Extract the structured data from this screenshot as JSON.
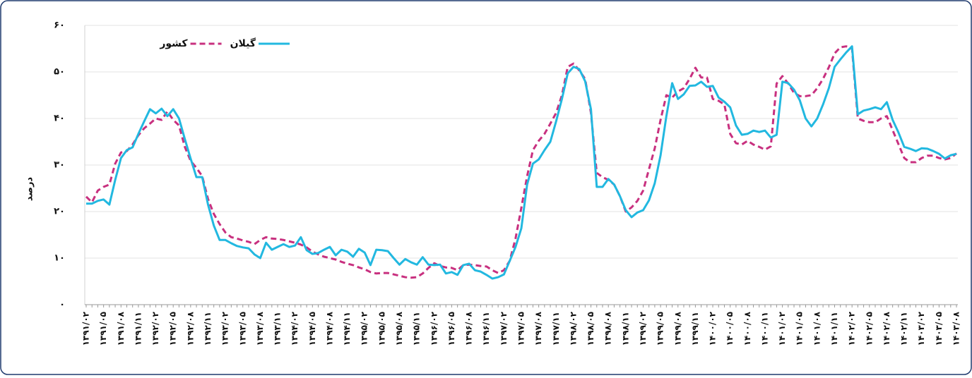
{
  "chart_data": {
    "type": "line",
    "y_label": "درصد",
    "categories": [
      "۱۳۹۱/۰۲",
      null,
      null,
      "۱۳۹۱/۰۵",
      null,
      null,
      "۱۳۹۱/۰۸",
      null,
      null,
      "۱۳۹۱/۱۱",
      null,
      null,
      "۱۳۹۲/۰۲",
      null,
      null,
      "۱۳۹۲/۰۵",
      null,
      null,
      "۱۳۹۲/۰۸",
      null,
      null,
      "۱۳۹۲/۱۱",
      null,
      null,
      "۱۳۹۳/۰۲",
      null,
      null,
      "۱۳۹۳/۰۵",
      null,
      null,
      "۱۳۹۳/۰۸",
      null,
      null,
      "۱۳۹۳/۱۱",
      null,
      null,
      "۱۳۹۴/۰۲",
      null,
      null,
      "۱۳۹۴/۰۵",
      null,
      null,
      "۱۳۹۴/۰۸",
      null,
      null,
      "۱۳۹۴/۱۱",
      null,
      null,
      "۱۳۹۵/۰۲",
      null,
      null,
      "۱۳۹۵/۰۵",
      null,
      null,
      "۱۳۹۵/۰۸",
      null,
      null,
      "۱۳۹۵/۱۱",
      null,
      null,
      "۱۳۹۶/۰۲",
      null,
      null,
      "۱۳۹۶/۰۵",
      null,
      null,
      "۱۳۹۶/۰۸",
      null,
      null,
      "۱۳۹۶/۱۱",
      null,
      null,
      "۱۳۹۷/۰۲",
      null,
      null,
      "۱۳۹۷/۰۵",
      null,
      null,
      "۱۳۹۷/۰۸",
      null,
      null,
      "۱۳۹۷/۱۱",
      null,
      null,
      "۱۳۹۸/۰۲",
      null,
      null,
      "۱۳۹۸/۰۵",
      null,
      null,
      "۱۳۹۸/۰۸",
      null,
      null,
      "۱۳۹۸/۱۱",
      null,
      null,
      "۱۳۹۹/۰۲",
      null,
      null,
      "۱۳۹۹/۰۵",
      null,
      null,
      "۱۳۹۹/۰۸",
      null,
      null,
      "۱۳۹۹/۱۱",
      null,
      null,
      "۱۴۰۰/۰۲",
      null,
      null,
      "۱۴۰۰/۰۵",
      null,
      null,
      "۱۴۰۰/۰۸",
      null,
      null,
      "۱۴۰۰/۱۱",
      null,
      null,
      "۱۴۰۱/۰۲",
      null,
      null,
      "۱۴۰۱/۰۵",
      null,
      null,
      "۱۴۰۱/۰۸",
      null,
      null,
      "۱۴۰۱/۱۱",
      null,
      null,
      "۱۴۰۲/۰۲",
      null,
      null,
      "۱۴۰۲/۰۵",
      null,
      null,
      "۱۴۰۲/۰۸",
      null,
      null,
      "۱۴۰۲/۱۱",
      null,
      null,
      "۱۴۰۳/۰۲",
      null,
      null,
      "۱۴۰۳/۰۵",
      null,
      null,
      "۱۴۰۳/۰۸"
    ],
    "series": [
      {
        "name": "گیلان",
        "color": "#22b8e0",
        "line_style": "solid",
        "values": [
          21.7,
          21.7,
          22.3,
          22.6,
          21.5,
          26.8,
          31.5,
          33.2,
          33.8,
          36.7,
          39.4,
          42.0,
          41.1,
          42.1,
          40.5,
          42.0,
          40.0,
          35.6,
          31.4,
          27.4,
          27.4,
          21.5,
          17.0,
          13.9,
          13.9,
          13.2,
          12.6,
          12.3,
          12.1,
          10.8,
          10.0,
          13.3,
          11.8,
          12.4,
          13.0,
          12.4,
          12.7,
          14.5,
          11.7,
          10.9,
          11.1,
          11.8,
          12.4,
          10.6,
          11.8,
          11.4,
          10.3,
          12.0,
          11.2,
          8.5,
          11.8,
          11.7,
          11.5,
          10.0,
          8.6,
          9.8,
          9.1,
          8.6,
          10.2,
          8.6,
          8.5,
          8.6,
          6.7,
          7.0,
          6.4,
          8.5,
          8.8,
          7.4,
          7.1,
          6.4,
          5.6,
          5.9,
          6.5,
          9.4,
          12.4,
          16.4,
          25.8,
          30.3,
          31.2,
          33.2,
          35.0,
          39.4,
          44.2,
          49.7,
          51.1,
          50.6,
          48.0,
          42.0,
          25.3,
          25.3,
          27.0,
          25.8,
          23.3,
          20.3,
          18.8,
          19.8,
          20.3,
          22.4,
          26.1,
          32.1,
          40.5,
          47.6,
          44.2,
          45.2,
          47.0,
          47.1,
          47.9,
          46.8,
          47.0,
          44.5,
          43.6,
          42.4,
          38.5,
          36.5,
          36.7,
          37.4,
          37.1,
          37.4,
          35.9,
          36.5,
          47.9,
          47.6,
          46.2,
          43.9,
          40.0,
          38.3,
          40.0,
          43.0,
          46.5,
          51.1,
          52.7,
          54.2,
          55.5,
          40.9,
          41.7,
          42.0,
          42.4,
          42.0,
          43.5,
          39.7,
          37.0,
          33.9,
          33.5,
          33.0,
          33.6,
          33.5,
          33.0,
          32.4,
          31.4,
          32.1,
          32.4
        ]
      },
      {
        "name": "کشور",
        "color": "#c8307f",
        "line_style": "dashed",
        "values": [
          23.2,
          22.0,
          24.5,
          25.3,
          25.8,
          30.3,
          32.7,
          33.0,
          34.4,
          36.4,
          37.9,
          38.9,
          40.0,
          39.7,
          41.5,
          39.7,
          38.5,
          33.9,
          30.9,
          29.4,
          27.6,
          22.7,
          19.5,
          17.3,
          15.5,
          14.5,
          14.2,
          13.8,
          13.5,
          13.0,
          13.9,
          14.5,
          14.2,
          14.1,
          13.9,
          13.6,
          13.3,
          12.9,
          12.3,
          11.4,
          10.8,
          10.3,
          10.0,
          9.7,
          9.2,
          8.8,
          8.5,
          8.0,
          7.6,
          7.0,
          6.7,
          6.8,
          6.8,
          6.5,
          6.2,
          5.9,
          5.8,
          5.9,
          6.7,
          7.9,
          8.9,
          8.3,
          8.0,
          7.9,
          7.4,
          8.5,
          8.6,
          8.5,
          8.3,
          8.2,
          7.4,
          6.8,
          7.4,
          9.4,
          14.2,
          20.8,
          27.6,
          33.2,
          35.2,
          36.7,
          38.9,
          41.2,
          45.0,
          51.1,
          51.8,
          50.3,
          48.5,
          41.2,
          28.3,
          27.4,
          26.8,
          25.8,
          23.3,
          20.0,
          20.9,
          22.3,
          24.5,
          29.1,
          33.6,
          39.7,
          45.0,
          44.5,
          45.8,
          46.5,
          48.5,
          50.9,
          48.8,
          48.8,
          44.2,
          43.8,
          43.0,
          36.7,
          34.7,
          34.4,
          35.2,
          34.4,
          33.9,
          33.3,
          34.0,
          47.5,
          49.1,
          47.5,
          45.5,
          44.8,
          44.8,
          45.0,
          46.5,
          48.5,
          51.0,
          54.0,
          55.3,
          55.5,
          55.0,
          40.0,
          39.5,
          39.2,
          39.2,
          40.0,
          40.5,
          37.5,
          34.5,
          31.5,
          30.6,
          30.6,
          31.5,
          32.0,
          32.0,
          31.5,
          31.2,
          31.5,
          32.5
        ]
      }
    ],
    "ylim": [
      0,
      60
    ],
    "yticks": [
      {
        "value": 0,
        "label": "۰"
      },
      {
        "value": 10,
        "label": "۱۰"
      },
      {
        "value": 20,
        "label": "۲۰"
      },
      {
        "value": 30,
        "label": "۳۰"
      },
      {
        "value": 40,
        "label": "۴۰"
      },
      {
        "value": 50,
        "label": "۵۰"
      },
      {
        "value": 60,
        "label": "۶۰"
      }
    ],
    "grid": true,
    "legend": "upper left"
  }
}
